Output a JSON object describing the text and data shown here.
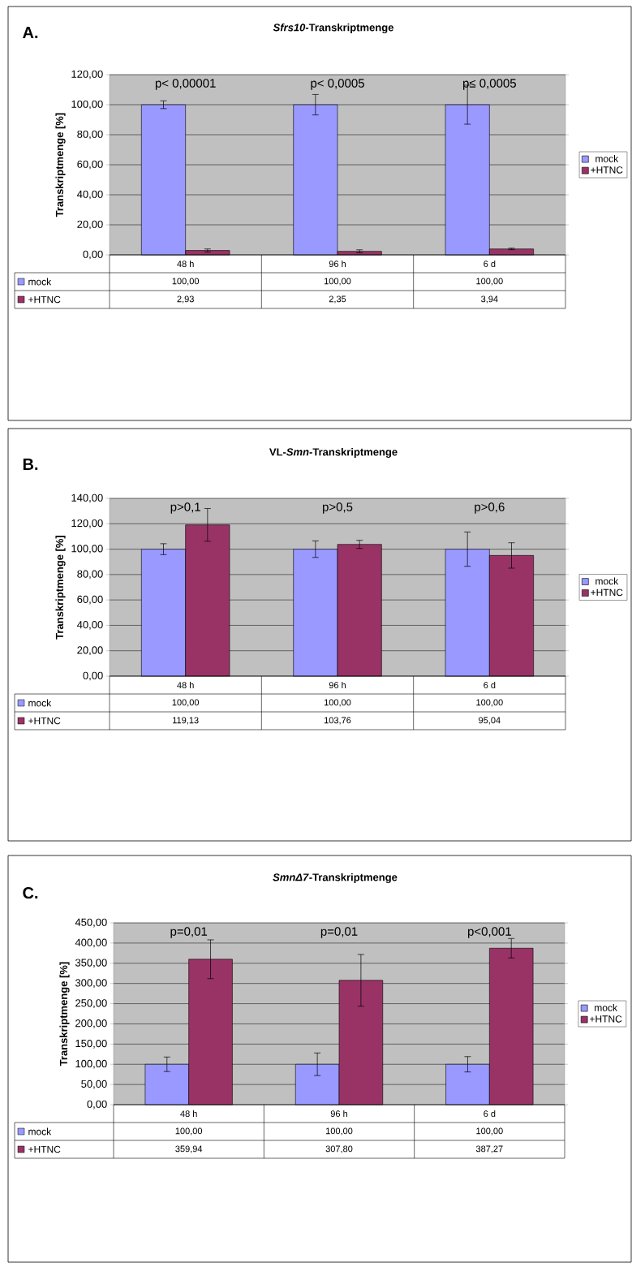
{
  "chart_data": [
    {
      "type": "bar",
      "title": "*Sfrs10*-Transkriptmenge",
      "ylabel": "Transkriptmenge [%]",
      "categories": [
        "48 h",
        "96 h",
        "6 d"
      ],
      "series": [
        {
          "name": "mock",
          "color": "#9999ff",
          "values": [
            100.0,
            100.0,
            100.0
          ],
          "errors": [
            2.6,
            6.8,
            13
          ],
          "value_labels": [
            "100,00",
            "100,00",
            "100,00"
          ]
        },
        {
          "name": "+HTNC",
          "color": "#993366",
          "values": [
            2.93,
            2.35,
            3.94
          ],
          "errors": [
            1,
            1,
            0.5
          ],
          "value_labels": [
            "2,93",
            "2,35",
            "3,94"
          ]
        }
      ],
      "ylim": [
        0,
        120
      ],
      "yticks": [
        {
          "value": 0,
          "label": "0,00"
        },
        {
          "value": 20,
          "label": "20,00"
        },
        {
          "value": 40,
          "label": "40,00"
        },
        {
          "value": 60,
          "label": "60,00"
        },
        {
          "value": 80,
          "label": "80,00"
        },
        {
          "value": 100,
          "label": "100,00"
        },
        {
          "value": 120,
          "label": "120,00"
        }
      ],
      "grid": "y",
      "legend": "right",
      "annotations": [
        "A.",
        "p< 0,00001",
        "p< 0,0005",
        "p≤ 0,0005"
      ]
    },
    {
      "type": "bar",
      "title": "VL-*Smn*-Transkriptmenge",
      "ylabel": "Transkriptmenge [%]",
      "categories": [
        "48 h",
        "96 h",
        "6 d"
      ],
      "series": [
        {
          "name": "mock",
          "color": "#9999ff",
          "values": [
            100.0,
            100.0,
            100.0
          ],
          "errors": [
            4.3,
            6.5,
            13.5
          ],
          "value_labels": [
            "100,00",
            "100,00",
            "100,00"
          ]
        },
        {
          "name": "+HTNC",
          "color": "#993366",
          "values": [
            119.13,
            103.76,
            95.04
          ],
          "errors": [
            12.9,
            3.2,
            10
          ],
          "value_labels": [
            "119,13",
            "103,76",
            "95,04"
          ]
        }
      ],
      "ylim": [
        0,
        140
      ],
      "yticks": [
        {
          "value": 0,
          "label": "0,00"
        },
        {
          "value": 20,
          "label": "20,00"
        },
        {
          "value": 40,
          "label": "40,00"
        },
        {
          "value": 60,
          "label": "60,00"
        },
        {
          "value": 80,
          "label": "80,00"
        },
        {
          "value": 100,
          "label": "100,00"
        },
        {
          "value": 120,
          "label": "120,00"
        },
        {
          "value": 140,
          "label": "140,00"
        }
      ],
      "grid": "y",
      "legend": "right",
      "annotations": [
        "B.",
        "p>0,1",
        "p>0,5",
        "p>0,6"
      ]
    },
    {
      "type": "bar",
      "title": "*SmnΔ7*-Transkriptmenge",
      "ylabel": "Transkriptmenge [%]",
      "categories": [
        "48 h",
        "96 h",
        "6 d"
      ],
      "series": [
        {
          "name": "mock",
          "color": "#9999ff",
          "values": [
            100.0,
            100.0,
            100.0
          ],
          "errors": [
            18,
            28,
            19
          ],
          "value_labels": [
            "100,00",
            "100,00",
            "100,00"
          ]
        },
        {
          "name": "+HTNC",
          "color": "#993366",
          "values": [
            359.94,
            307.8,
            387.27
          ],
          "errors": [
            48,
            64,
            24
          ],
          "value_labels": [
            "359,94",
            "307,80",
            "387,27"
          ]
        }
      ],
      "ylim": [
        0,
        450
      ],
      "yticks": [
        {
          "value": 0,
          "label": "0,00"
        },
        {
          "value": 50,
          "label": "50,00"
        },
        {
          "value": 100,
          "label": "100,00"
        },
        {
          "value": 150,
          "label": "150,00"
        },
        {
          "value": 200,
          "label": "200,00"
        },
        {
          "value": 250,
          "label": "250,00"
        },
        {
          "value": 300,
          "label": "300,00"
        },
        {
          "value": 350,
          "label": "350,00"
        },
        {
          "value": 400,
          "label": "400,00"
        },
        {
          "value": 450,
          "label": "450,00"
        }
      ],
      "grid": "y",
      "legend": "right",
      "annotations": [
        "C.",
        "p=0,01",
        "p=0,01",
        "p<0,001"
      ]
    }
  ]
}
